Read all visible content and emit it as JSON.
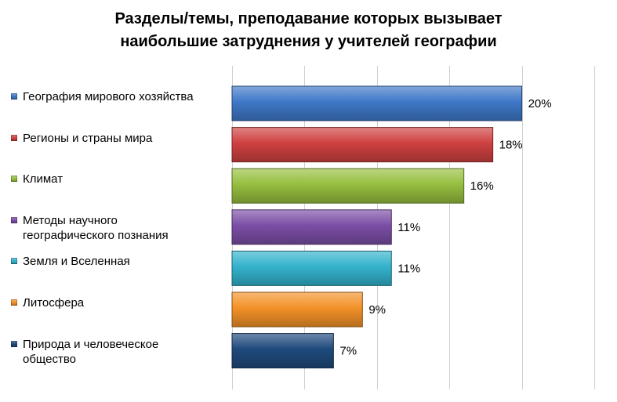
{
  "chart_data": {
    "type": "bar",
    "orientation": "horizontal",
    "title": [
      "Разделы/темы, преподавание которых вызывает",
      "наибольшие затруднения  у учителей географии"
    ],
    "categories": [
      [
        "География мирового хозяйства"
      ],
      [
        "Регионы и страны мира"
      ],
      [
        "Климат"
      ],
      [
        "Методы научного",
        "географического познания"
      ],
      [
        "Земля и Вселенная"
      ],
      [
        "Литосфера"
      ],
      [
        "Природа и человеческое",
        "общество"
      ]
    ],
    "values": [
      20,
      18,
      16,
      11,
      11,
      9,
      7
    ],
    "value_labels": [
      "20%",
      "18%",
      "16%",
      "11%",
      "11%",
      "9%",
      "7%"
    ],
    "colors": [
      "#3f78c8",
      "#cf4140",
      "#96bf3f",
      "#7b4ea6",
      "#33b3cc",
      "#f39128",
      "#1f4a7c"
    ],
    "xlim": [
      0,
      25
    ],
    "grid": true,
    "legend_position": "left"
  }
}
